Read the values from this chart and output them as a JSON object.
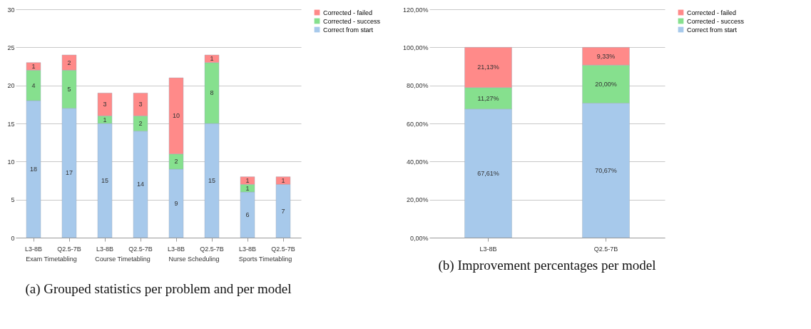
{
  "chart_data": [
    {
      "type": "bar",
      "stacked": true,
      "title": "(a) Grouped statistics per problem and per model",
      "categories": [
        "L3-8B",
        "Q2.5-7B",
        "L3-8B",
        "Q2.5-7B",
        "L3-8B",
        "Q2.5-7B",
        "L3-8B",
        "Q2.5-7B"
      ],
      "annotations": [
        "Exam Timetabling",
        "Course Timetabling",
        "Nurse Scheduling",
        "Sports Timetabling"
      ],
      "series": [
        {
          "name": "Correct from start",
          "color": "#a7c9eb",
          "values": [
            18,
            17,
            15,
            14,
            9,
            15,
            6,
            7
          ]
        },
        {
          "name": "Corrected - success",
          "color": "#86e08e",
          "values": [
            4,
            5,
            1,
            2,
            2,
            8,
            1,
            null
          ]
        },
        {
          "name": "Corrected - failed",
          "color": "#ff8a89",
          "values": [
            1,
            2,
            3,
            3,
            10,
            1,
            1,
            1
          ]
        }
      ],
      "ylim": [
        0,
        30
      ],
      "yticks": [
        0,
        5,
        10,
        15,
        20,
        25,
        30
      ],
      "grid": "y",
      "legend": "right",
      "data_labels": true
    },
    {
      "type": "bar",
      "stacked": true,
      "title": "(b) Improvement percentages per model",
      "categories": [
        "L3-8B",
        "Q2.5-7B"
      ],
      "series": [
        {
          "name": "Correct from start",
          "color": "#a7c9eb",
          "values": [
            67.61,
            70.67
          ],
          "value_labels": [
            "67,61%",
            "70,67%"
          ]
        },
        {
          "name": "Corrected - success",
          "color": "#86e08e",
          "values": [
            11.27,
            20.0
          ],
          "value_labels": [
            "11,27%",
            "20,00%"
          ]
        },
        {
          "name": "Corrected - failed",
          "color": "#ff8a89",
          "values": [
            21.13,
            9.33
          ],
          "value_labels": [
            "21,13%",
            "9,33%"
          ]
        }
      ],
      "ylim": [
        0,
        120
      ],
      "yticks": [
        {
          "value": 0,
          "label": "0,00%"
        },
        {
          "value": 20,
          "label": "20,00%"
        },
        {
          "value": 40,
          "label": "40,00%"
        },
        {
          "value": 60,
          "label": "60,00%"
        },
        {
          "value": 80,
          "label": "80,00%"
        },
        {
          "value": 100,
          "label": "100,00%"
        },
        {
          "value": 120,
          "label": "120,00%"
        }
      ],
      "grid": "y",
      "legend": "right"
    }
  ]
}
